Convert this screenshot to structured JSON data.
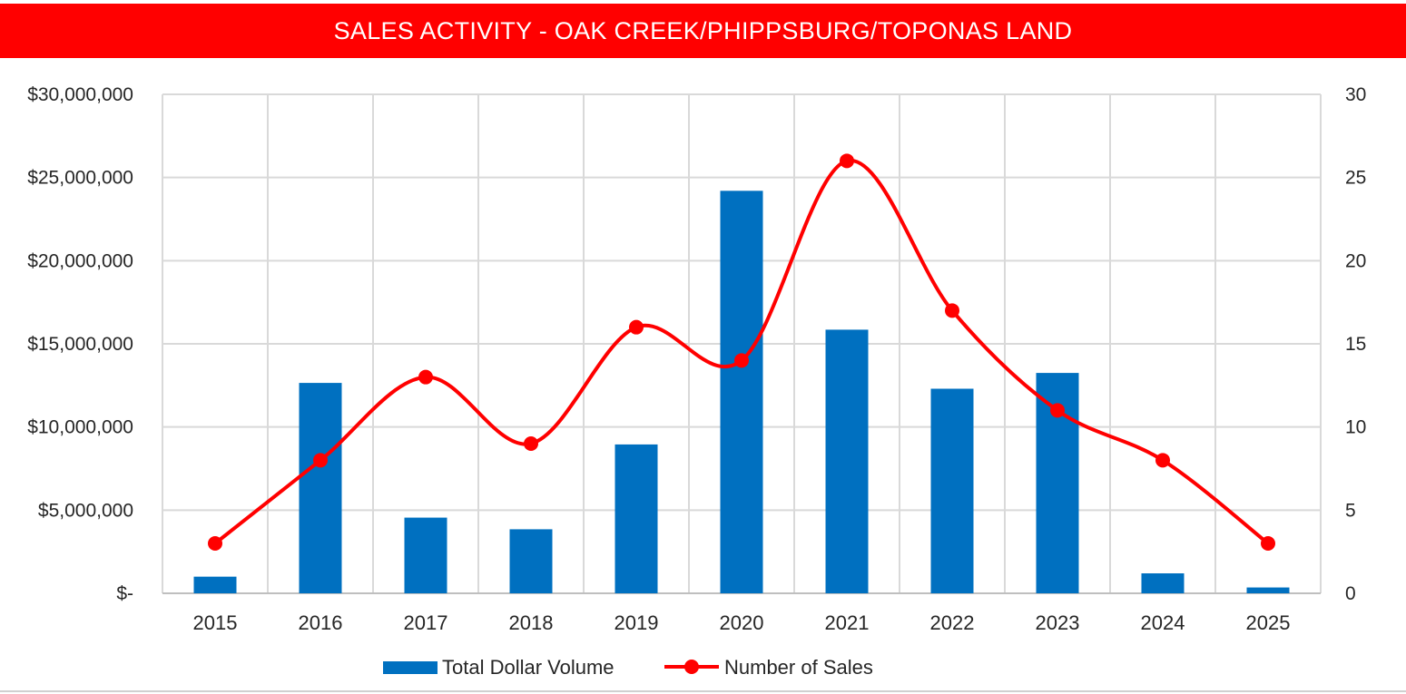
{
  "chart_data": {
    "type": "bar",
    "title": "SALES ACTIVITY - OAK CREEK/PHIPPSBURG/TOPONAS LAND",
    "categories": [
      "2015",
      "2016",
      "2017",
      "2018",
      "2019",
      "2020",
      "2021",
      "2022",
      "2023",
      "2024",
      "2025"
    ],
    "series": [
      {
        "name": "Total Dollar Volume",
        "type": "bar",
        "axis": "left",
        "color": "#0070c0",
        "values": [
          1000000,
          12650000,
          4550000,
          3850000,
          8950000,
          24200000,
          15850000,
          12300000,
          13250000,
          1200000,
          350000
        ]
      },
      {
        "name": "Number of Sales",
        "type": "line",
        "smooth": true,
        "axis": "right",
        "color": "#ff0000",
        "values": [
          3,
          8,
          13,
          9,
          16,
          14,
          26,
          17,
          11,
          8,
          3
        ]
      }
    ],
    "y_left": {
      "ylim": [
        0,
        30000000
      ],
      "ticks": [
        0,
        5000000,
        10000000,
        15000000,
        20000000,
        25000000,
        30000000
      ],
      "tick_labels": [
        "$-",
        "$5,000,000",
        "$10,000,000",
        "$15,000,000",
        "$20,000,000",
        "$25,000,000",
        "$30,000,000"
      ]
    },
    "y_right": {
      "ylim": [
        0,
        30
      ],
      "ticks": [
        0,
        5,
        10,
        15,
        20,
        25,
        30
      ],
      "tick_labels": [
        "0",
        "5",
        "10",
        "15",
        "20",
        "25",
        "30"
      ]
    },
    "grid": true,
    "legend": "bottom",
    "title_bar_color": "#ff0000",
    "grid_color": "#d9d9d9"
  }
}
